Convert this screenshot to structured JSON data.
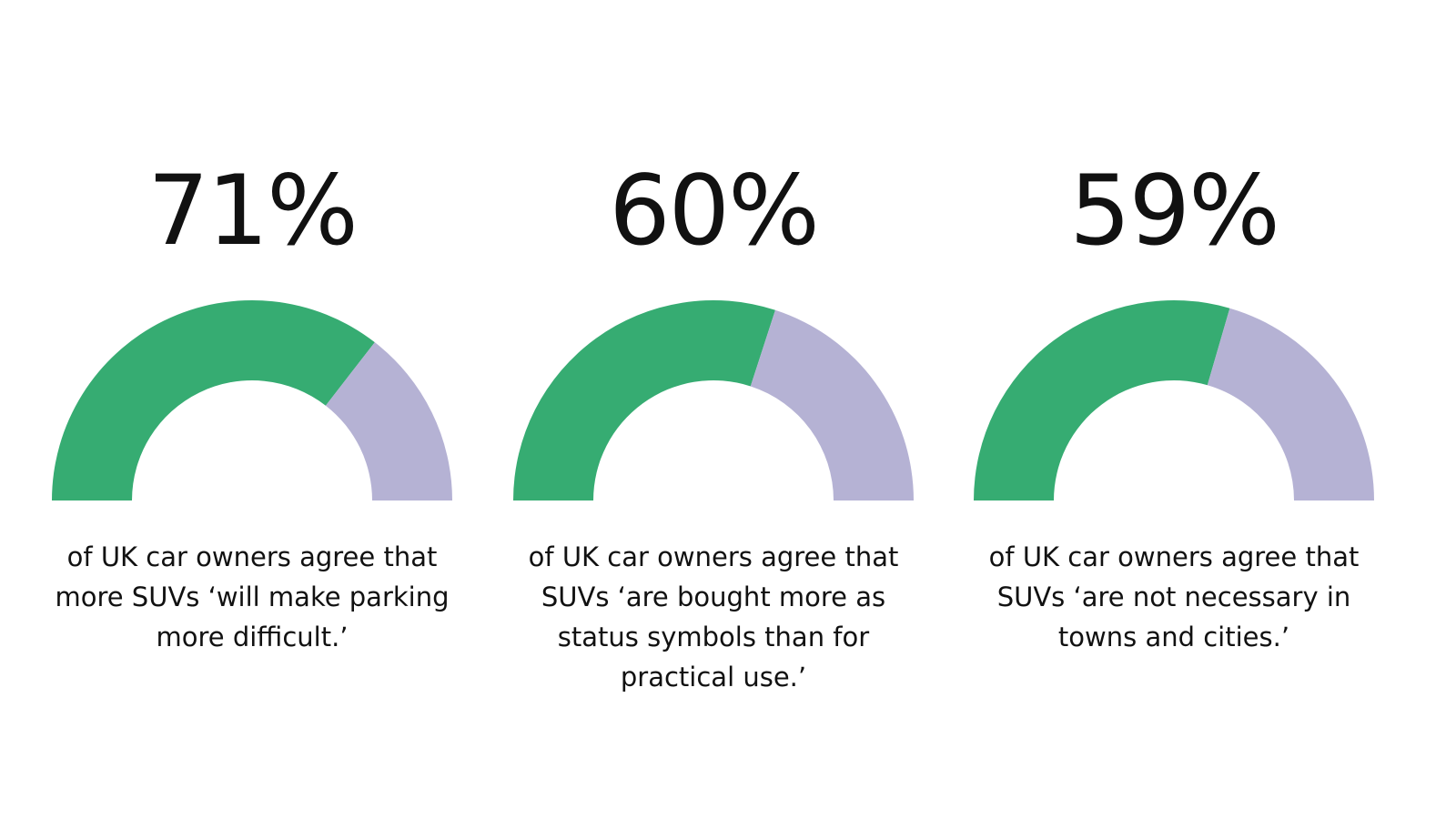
{
  "colors": {
    "agree": "#36AC72",
    "remainder": "#B5B2D4",
    "text": "#111111",
    "background": "#FFFFFF"
  },
  "chart_data": [
    {
      "type": "gauge",
      "value": 71,
      "max": 100,
      "value_label": "71%",
      "caption": "of UK car owners agree that more SUVs ‘will make parking more difficult.’"
    },
    {
      "type": "gauge",
      "value": 60,
      "max": 100,
      "value_label": "60%",
      "caption": "of UK car owners agree that SUVs ‘are bought more as status symbols than for practical use.’"
    },
    {
      "type": "gauge",
      "value": 59,
      "max": 100,
      "value_label": "59%",
      "caption": "of UK car owners agree that SUVs ‘are not necessary in towns and cities.’"
    }
  ]
}
